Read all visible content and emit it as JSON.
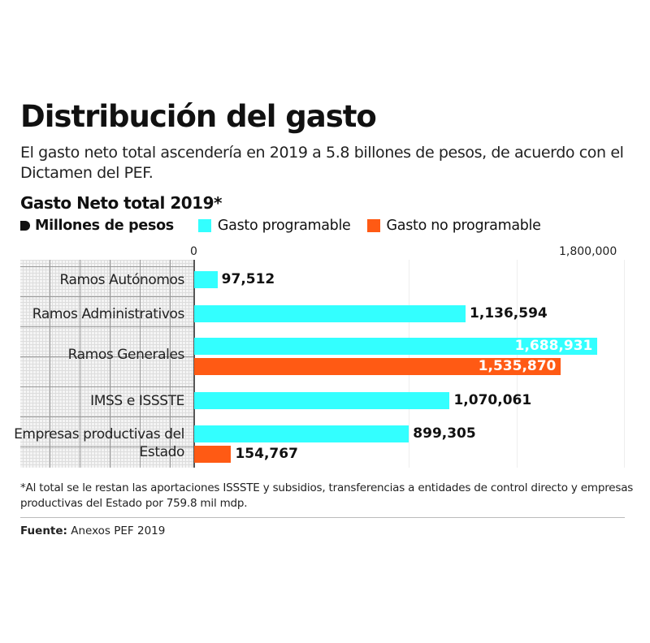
{
  "header": {
    "title": "Distribución del gasto",
    "subtitle": "El gasto neto total ascendería en 2019 a 5.8 billones de pesos, de acuerdo con el Dictamen del PEF."
  },
  "chart_data": {
    "type": "bar",
    "orientation": "horizontal",
    "title": "Gasto Neto total 2019*",
    "units": "Millones de pesos",
    "categories": [
      "Ramos Autónomos",
      "Ramos Administrativos",
      "Ramos Generales",
      "IMSS e ISSSTE",
      "Empresas productivas del Estado"
    ],
    "series": [
      {
        "name": "Gasto programable",
        "color": "#33FFFF",
        "values": [
          97512,
          1136594,
          1688931,
          1070061,
          899305
        ],
        "labels": [
          "97,512",
          "1,136,594",
          "1,688,931",
          "1,070,061",
          "899,305"
        ]
      },
      {
        "name": "Gasto no programable",
        "color": "#FF5A14",
        "values": [
          null,
          null,
          1535870,
          null,
          154767
        ],
        "labels": [
          null,
          null,
          "1,535,870",
          null,
          "154,767"
        ]
      }
    ],
    "xlim": [
      0,
      1800000
    ],
    "tick_labels": [
      "0",
      "1,800,000"
    ],
    "legend": "top-left"
  },
  "footnote": "*Al total se le restan las aportaciones ISSSTE y subsidios, transferencias a entidades de control directo y empresas productivas del Estado por 759.8 mil mdp.",
  "source": {
    "label": "Fuente:",
    "text": "Anexos PEF 2019"
  }
}
